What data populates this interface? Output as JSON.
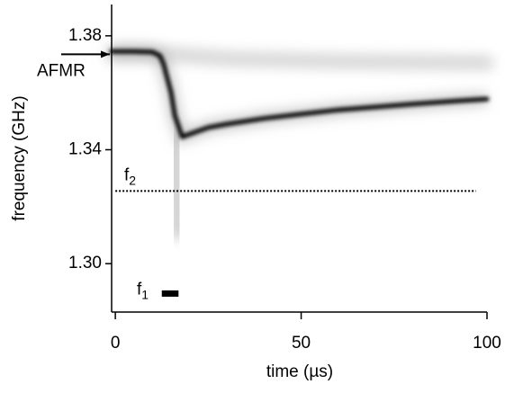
{
  "chart_data": {
    "type": "line",
    "xlabel": "time (µs)",
    "ylabel": "frequency (GHz)",
    "xlim": [
      -1,
      100
    ],
    "ylim": [
      1.283,
      1.391
    ],
    "xticks": [
      0,
      50,
      100
    ],
    "yticks": [
      {
        "value": 1.3,
        "label": "1.30"
      },
      1.34,
      1.38
    ],
    "series": [
      {
        "color": "#d6d6d6",
        "x": [
          -1,
          14,
          30,
          60,
          100
        ],
        "values": [
          1.3735,
          1.3735,
          1.372,
          1.371,
          1.3705
        ]
      },
      {
        "color": "#c8c8c8",
        "x": [
          16,
          16.5,
          17
        ],
        "values": [
          1.345,
          1.325,
          1.311
        ]
      },
      {
        "color": "#000000",
        "x": [
          -1,
          5,
          10,
          12,
          13,
          14,
          15,
          16,
          18,
          20,
          25,
          30,
          40,
          50,
          60,
          70,
          80,
          90,
          100
        ],
        "values": [
          1.3745,
          1.3745,
          1.3743,
          1.373,
          1.37,
          1.365,
          1.36,
          1.352,
          1.3445,
          1.3455,
          1.3478,
          1.349,
          1.351,
          1.3525,
          1.354,
          1.355,
          1.356,
          1.357,
          1.3578
        ]
      }
    ],
    "annotations": {
      "afmr": {
        "text": "AFMR",
        "y": 1.3735
      },
      "f2": {
        "text": "f",
        "sub": "2",
        "y": 1.3255,
        "x": [
          0,
          97
        ]
      },
      "f1": {
        "text": "f",
        "sub": "1",
        "y": 1.2895,
        "x": [
          12.5,
          17
        ]
      }
    }
  }
}
